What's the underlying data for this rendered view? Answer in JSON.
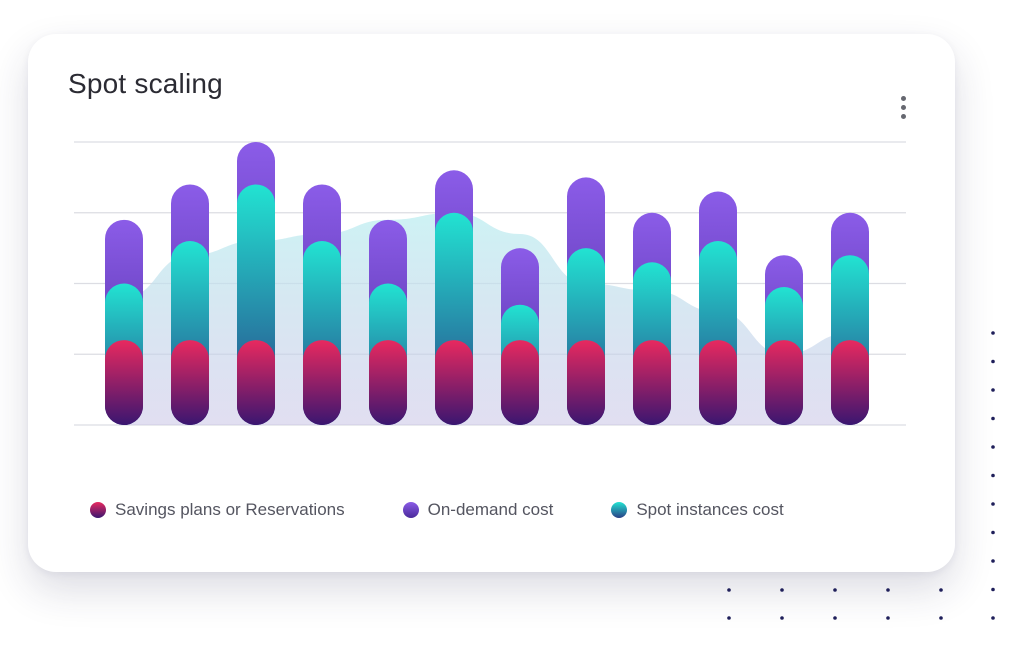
{
  "card": {
    "title": "Spot scaling",
    "menu_icon": "kebab-menu-icon"
  },
  "chart_data": {
    "type": "bar",
    "stacked": true,
    "title": "Spot scaling",
    "categories": [
      "",
      "",
      "",
      "",
      "",
      "",
      "",
      "",
      "",
      "",
      "",
      ""
    ],
    "ylim": [
      0,
      4
    ],
    "grid": true,
    "legend_position": "bottom",
    "series": [
      {
        "name": "Savings plans or Reservations",
        "color_top": "#e8295f",
        "color_bottom": "#3a1670",
        "values": [
          1.2,
          1.2,
          1.2,
          1.2,
          1.2,
          1.2,
          1.2,
          1.2,
          1.2,
          1.2,
          1.2,
          1.2
        ]
      },
      {
        "name": "Spot instances cost",
        "color_top": "#22e3d2",
        "color_bottom": "#2a3f86",
        "values": [
          0.8,
          1.4,
          2.2,
          1.4,
          0.8,
          1.8,
          0.5,
          1.3,
          1.1,
          1.4,
          0.75,
          1.2
        ]
      },
      {
        "name": "On-demand cost",
        "color_top": "#8b5ce8",
        "color_bottom": "#4a2a9a",
        "values": [
          0.9,
          0.8,
          0.6,
          0.8,
          0.9,
          0.6,
          0.8,
          1.0,
          0.7,
          0.7,
          0.45,
          0.6
        ]
      }
    ],
    "area": {
      "color": "#bdeef0",
      "values": [
        1.8,
        2.4,
        2.6,
        2.7,
        2.9,
        3.0,
        2.7,
        2.0,
        1.9,
        1.6,
        1.0,
        1.3
      ]
    }
  },
  "legend": {
    "items": [
      {
        "label": "Savings plans or Reservations",
        "color_top": "#e8295f",
        "color_bottom": "#3a1670"
      },
      {
        "label": "On-demand cost",
        "color_top": "#8b5ce8",
        "color_bottom": "#4a2a9a"
      },
      {
        "label": "Spot instances cost",
        "color_top": "#22e3d2",
        "color_bottom": "#2a3f86"
      }
    ]
  },
  "colors": {
    "grid": "#dcdde3",
    "dots": "#1f1f5a",
    "title": "#2b2b33"
  }
}
